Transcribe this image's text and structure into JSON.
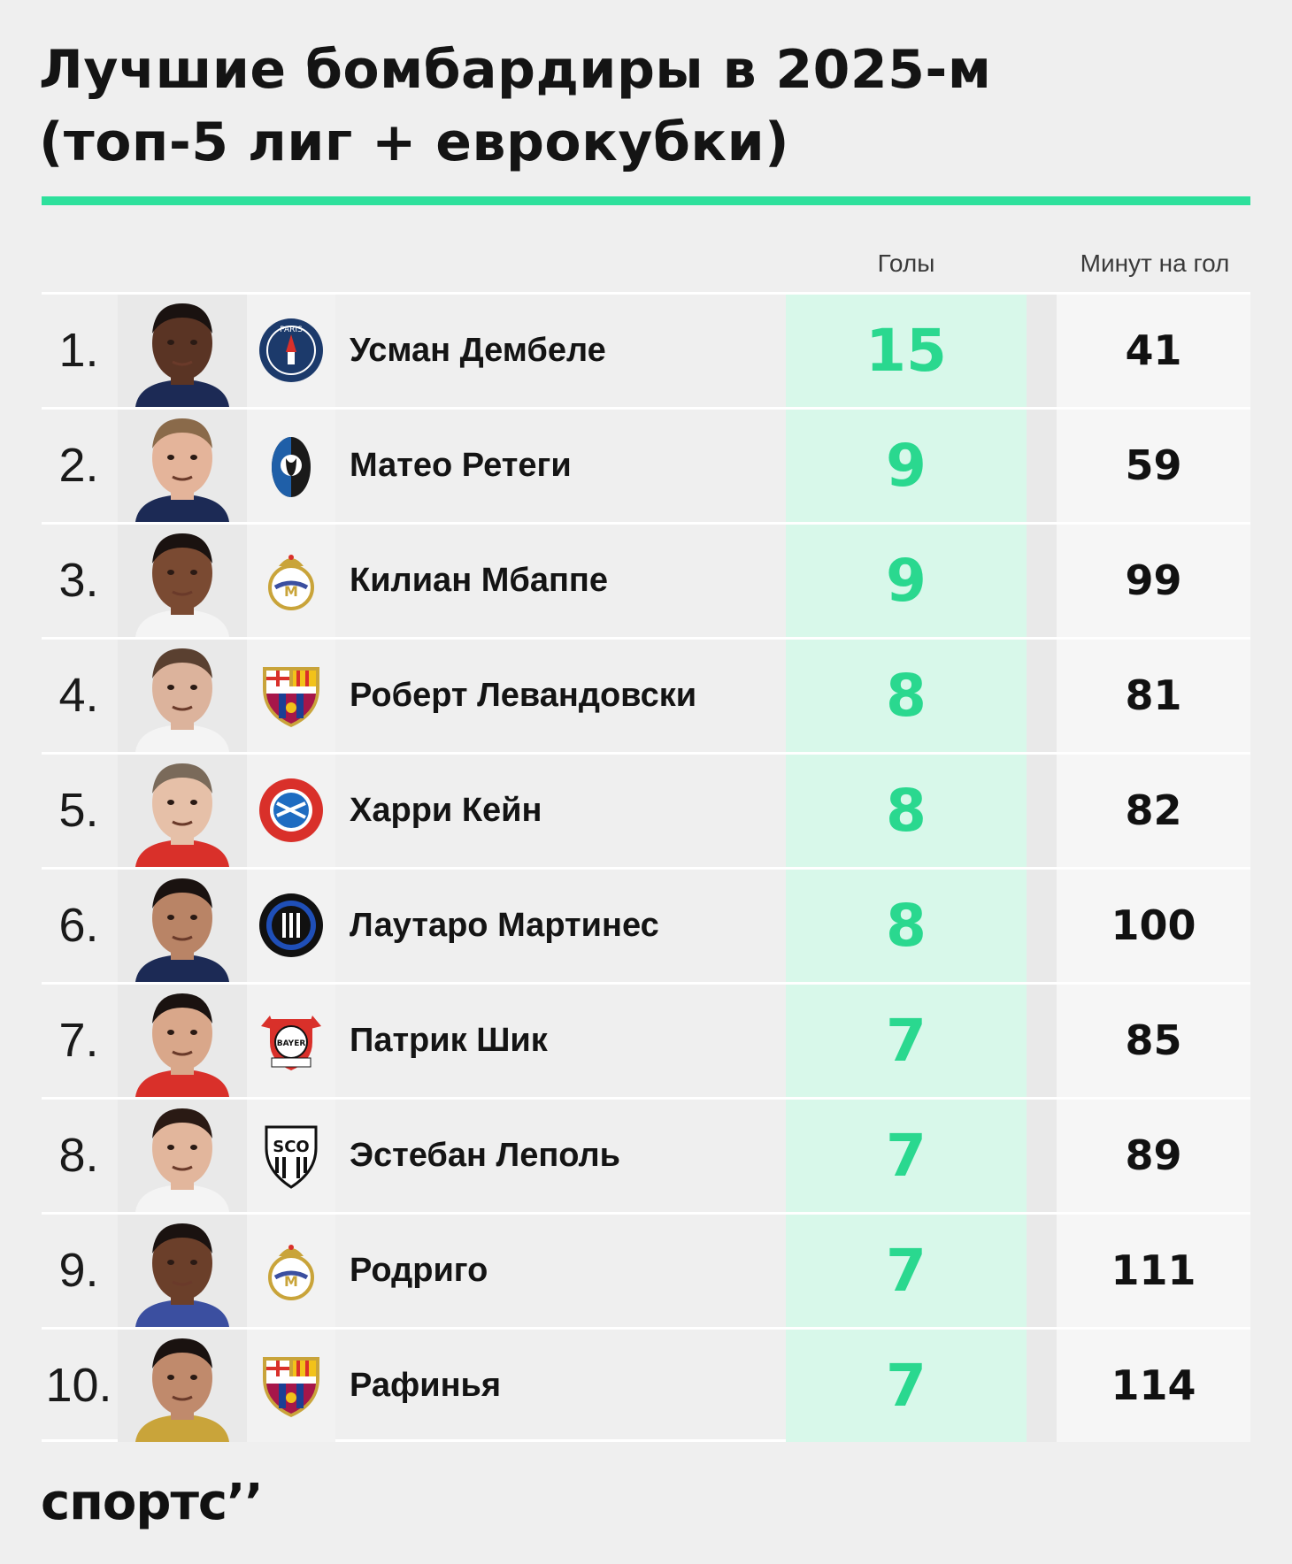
{
  "title": {
    "line1": "Лучшие бомбардиры в 2025-м",
    "line2": "(топ-5 лиг + еврокубки)"
  },
  "columns": {
    "goals": "Голы",
    "minutes": "Минут на гол"
  },
  "colors": {
    "accent": "#2ee09c",
    "goals_bg": "#d8f8ea",
    "goals_text": "#2ad88f"
  },
  "rows": [
    {
      "rank": "1.",
      "name": "Усман Дембеле",
      "goals": "15",
      "minutes": "41",
      "club_icon": "psg-crest-icon"
    },
    {
      "rank": "2.",
      "name": "Матео Ретеги",
      "goals": "9",
      "minutes": "59",
      "club_icon": "atalanta-crest-icon"
    },
    {
      "rank": "3.",
      "name": "Килиан Мбаппе",
      "goals": "9",
      "minutes": "99",
      "club_icon": "real-madrid-crest-icon"
    },
    {
      "rank": "4.",
      "name": "Роберт Левандовски",
      "goals": "8",
      "minutes": "81",
      "club_icon": "barcelona-crest-icon"
    },
    {
      "rank": "5.",
      "name": "Харри Кейн",
      "goals": "8",
      "minutes": "82",
      "club_icon": "bayern-crest-icon"
    },
    {
      "rank": "6.",
      "name": "Лаутаро Мартинес",
      "goals": "8",
      "minutes": "100",
      "club_icon": "inter-crest-icon"
    },
    {
      "rank": "7.",
      "name": "Патрик Шик",
      "goals": "7",
      "minutes": "85",
      "club_icon": "leverkusen-crest-icon"
    },
    {
      "rank": "8.",
      "name": "Эстебан Леполь",
      "goals": "7",
      "minutes": "89",
      "club_icon": "angers-crest-icon"
    },
    {
      "rank": "9.",
      "name": "Родриго",
      "goals": "7",
      "minutes": "111",
      "club_icon": "real-madrid-crest-icon"
    },
    {
      "rank": "10.",
      "name": "Рафинья",
      "goals": "7",
      "minutes": "114",
      "club_icon": "barcelona-crest-icon"
    }
  ],
  "brand": "спортс’’"
}
